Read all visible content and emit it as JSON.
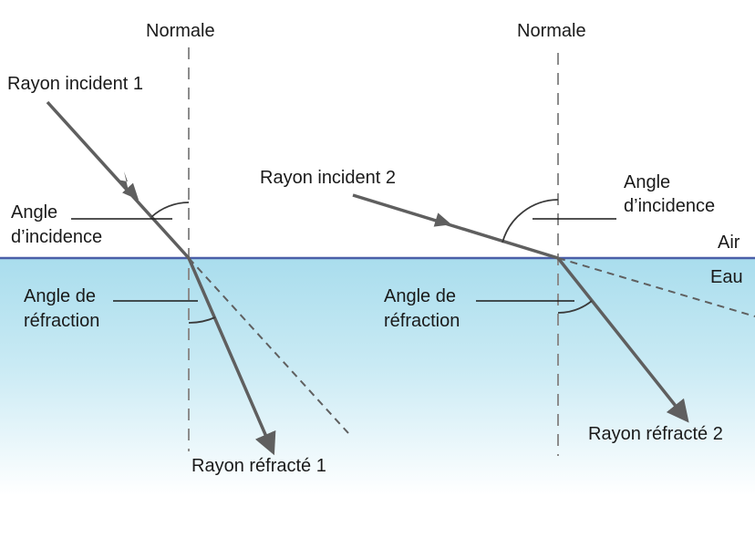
{
  "labels": {
    "normal_left": "Normale",
    "normal_right": "Normale",
    "incident_1": "Rayon incident 1",
    "incident_2": "Rayon incident 2",
    "refracted_1": "Rayon réfracté 1",
    "refracted_2": "Rayon réfracté 2",
    "angle_incidence_1_line1": "Angle",
    "angle_incidence_1_line2": "d’incidence",
    "angle_incidence_2_line1": "Angle",
    "angle_incidence_2_line2": "d’incidence",
    "angle_refraction_1_line1": "Angle de",
    "angle_refraction_1_line2": "réfraction",
    "angle_refraction_2_line1": "Angle de",
    "angle_refraction_2_line2": "réfraction",
    "air": "Air",
    "water": "Eau"
  },
  "colors": {
    "ray": "#5f5f5f",
    "normal_line": "#8c8c8c",
    "interface_line": "#4a5fa8",
    "water_top": "#a9dded",
    "water_bottom": "#ffffff",
    "text": "#1a1a1a"
  }
}
